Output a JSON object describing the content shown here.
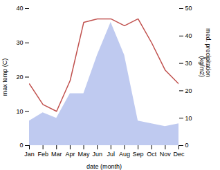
{
  "chart_data": {
    "type": "line",
    "xlabel": "date (month)",
    "ylabel": "max temp (C)",
    "y2label": "med. precipitation\n(kg/m2)",
    "categories": [
      "Jan",
      "Feb",
      "Mar",
      "Apr",
      "May",
      "Jun",
      "Jul",
      "Aug",
      "Sep",
      "Oct",
      "Nov",
      "Dec"
    ],
    "series": [
      {
        "type": "area",
        "axis": "y2",
        "color": "#b8c4ee",
        "values": [
          9,
          12,
          10,
          19,
          19,
          33,
          45,
          33,
          9,
          8,
          7,
          8
        ]
      },
      {
        "type": "line",
        "color": "#c0504d",
        "values": [
          18,
          12,
          10,
          19,
          36,
          37,
          37,
          35,
          37,
          30,
          22,
          18
        ]
      }
    ],
    "ylim": [
      0,
      40
    ],
    "yticks": [
      0,
      10,
      20,
      30,
      40
    ],
    "y2lim": [
      0,
      50
    ],
    "y2ticks": [
      0,
      10,
      20,
      30,
      40,
      50
    ]
  }
}
